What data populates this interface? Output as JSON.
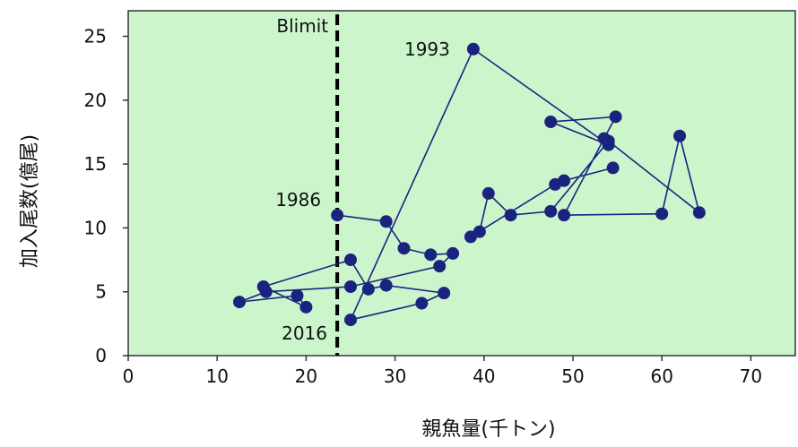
{
  "chart_data": {
    "type": "scatter",
    "title": "",
    "xlabel": "親魚量(千トン)",
    "ylabel": "加入尾数(億尾)",
    "xlim": [
      0,
      75
    ],
    "ylim": [
      0,
      27
    ],
    "xticks": [
      0,
      10,
      20,
      30,
      40,
      50,
      60,
      70
    ],
    "yticks": [
      0,
      5,
      10,
      15,
      20,
      25
    ],
    "grid": false,
    "legend": "none",
    "colors": {
      "plot_background": "#ccf5cc",
      "series": "#1a237e",
      "reference_line": "#000000",
      "axis": "#333333"
    },
    "series": [
      {
        "connected": true,
        "points": [
          {
            "x": 23.5,
            "y": 11.0
          },
          {
            "x": 29.0,
            "y": 10.5
          },
          {
            "x": 31.0,
            "y": 8.4
          },
          {
            "x": 34.0,
            "y": 7.9
          },
          {
            "x": 36.5,
            "y": 8.0
          },
          {
            "x": 35.0,
            "y": 7.0
          },
          {
            "x": 25.0,
            "y": 5.4
          },
          {
            "x": 15.5,
            "y": 5.0
          },
          {
            "x": 12.5,
            "y": 4.2
          },
          {
            "x": 19.0,
            "y": 4.7
          },
          {
            "x": 20.0,
            "y": 3.8
          },
          {
            "x": 15.2,
            "y": 5.4
          },
          {
            "x": 25.0,
            "y": 7.5
          },
          {
            "x": 27.0,
            "y": 5.2
          },
          {
            "x": 29.0,
            "y": 5.5
          },
          {
            "x": 35.5,
            "y": 4.9
          },
          {
            "x": 33.0,
            "y": 4.1
          },
          {
            "x": 25.0,
            "y": 2.8
          },
          {
            "x": 38.8,
            "y": 24.0
          },
          {
            "x": 54.0,
            "y": 16.5
          },
          {
            "x": 47.5,
            "y": 18.3
          },
          {
            "x": 54.8,
            "y": 18.7
          },
          {
            "x": 53.5,
            "y": 17.0
          },
          {
            "x": 49.0,
            "y": 11.0
          },
          {
            "x": 60.0,
            "y": 11.1
          },
          {
            "x": 62.0,
            "y": 17.2
          },
          {
            "x": 64.2,
            "y": 11.2
          },
          {
            "x": 54.0,
            "y": 16.8
          },
          {
            "x": 47.5,
            "y": 11.3
          },
          {
            "x": 43.0,
            "y": 11.0
          },
          {
            "x": 40.5,
            "y": 12.7
          },
          {
            "x": 39.5,
            "y": 9.7
          },
          {
            "x": 38.5,
            "y": 9.3
          },
          {
            "x": 48.0,
            "y": 13.4
          },
          {
            "x": 49.0,
            "y": 13.7
          },
          {
            "x": 54.5,
            "y": 14.7
          }
        ]
      }
    ],
    "reference_lines": [
      {
        "axis": "x",
        "value": 23.5,
        "style": "dashed",
        "label": "Blimit"
      }
    ],
    "annotations": [
      {
        "text": "1993",
        "x": 38.8,
        "y": 24.0
      },
      {
        "text": "1986",
        "x": 23.5,
        "y": 11.0
      },
      {
        "text": "2016",
        "x": 25.0,
        "y": 2.8
      }
    ]
  }
}
